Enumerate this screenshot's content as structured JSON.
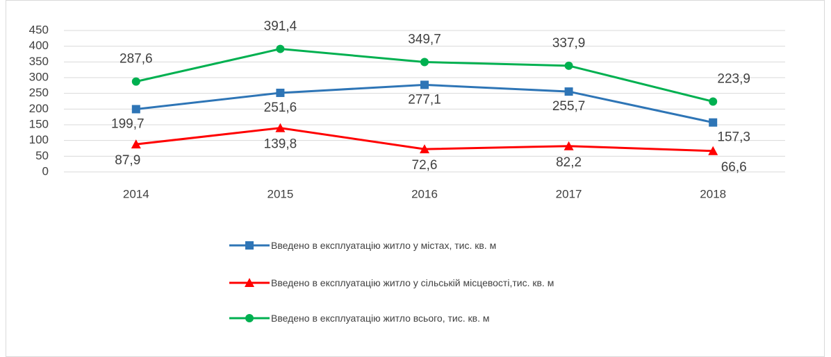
{
  "chart_data": {
    "type": "line",
    "categories": [
      "2014",
      "2015",
      "2016",
      "2017",
      "2018"
    ],
    "series": [
      {
        "name": "Введено в експлуатацію житло у містах, тис. кв. м",
        "color": "#2e75b6",
        "marker": "square",
        "values": [
          199.7,
          251.6,
          277.1,
          255.7,
          157.3
        ],
        "value_labels": [
          "199,7",
          "251,6",
          "277,1",
          "255,7",
          "157,3"
        ]
      },
      {
        "name": "Введено в експлуатацію житло у сільській місцевості,тис. кв. м",
        "color": "#ff0000",
        "marker": "triangle",
        "values": [
          87.9,
          139.8,
          72.6,
          82.2,
          66.6
        ],
        "value_labels": [
          "87,9",
          "139,8",
          "72,6",
          "82,2",
          "66,6"
        ]
      },
      {
        "name": "Введено в експлуатацію житло всього, тис. кв. м",
        "color": "#00b050",
        "marker": "circle",
        "values": [
          287.6,
          391.4,
          349.7,
          337.9,
          223.9
        ],
        "value_labels": [
          "287,6",
          "391,4",
          "349,7",
          "337,9",
          "223,9"
        ]
      }
    ],
    "ylim": [
      0,
      450
    ],
    "yticks": [
      0,
      50,
      100,
      150,
      200,
      250,
      300,
      350,
      400,
      450
    ],
    "grid": true
  }
}
